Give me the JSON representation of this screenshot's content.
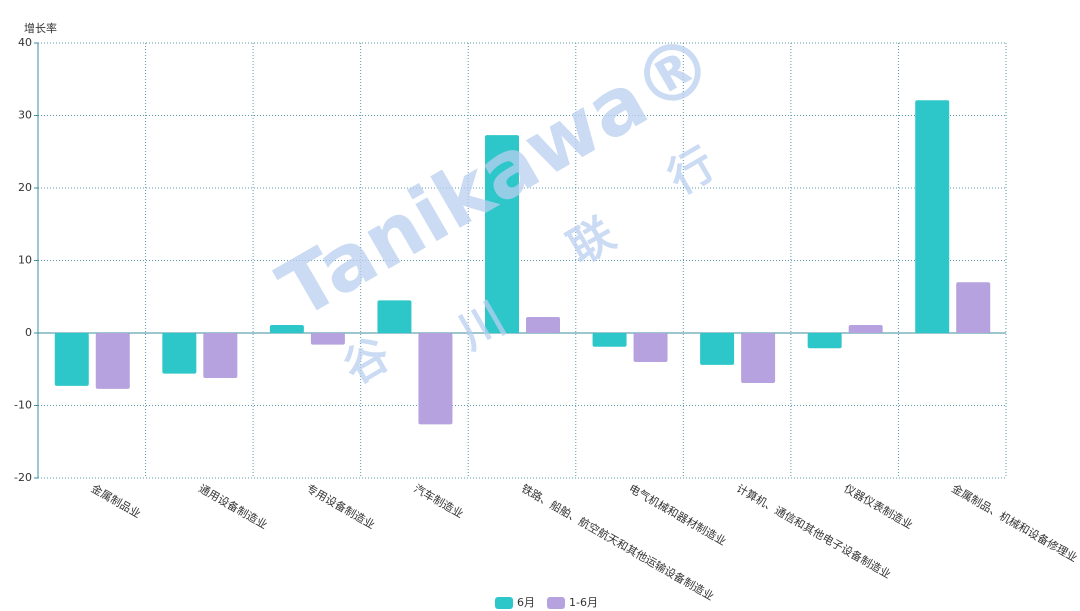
{
  "chart_data": {
    "type": "bar",
    "y_axis_label": "增长率",
    "watermark": {
      "brand": "Tanikawa®",
      "chars": [
        "谷",
        "川",
        "联",
        "行"
      ]
    },
    "categories": [
      "金属制品业",
      "通用设备制造业",
      "专用设备制造业",
      "汽车制造业",
      "铁路、船舶、航空航天和其他运输设备制造业",
      "电气机械和器材制造业",
      "计算机、通信和其他电子设备制造业",
      "仪器仪表制造业",
      "金属制品、机械和设备修理业"
    ],
    "series": [
      {
        "name": "6月",
        "color": "#2ec7c9",
        "values": [
          -7.3,
          -5.6,
          1.1,
          4.5,
          27.3,
          -1.9,
          -4.4,
          -2.1,
          32.1
        ]
      },
      {
        "name": "1-6月",
        "color": "#b6a2de",
        "values": [
          -7.7,
          -6.2,
          -1.6,
          -12.6,
          2.2,
          -4.0,
          -6.9,
          1.1,
          7.0
        ]
      }
    ],
    "ylim": [
      -20,
      40
    ],
    "yticks": [
      -20,
      -10,
      0,
      10,
      20,
      30,
      40
    ],
    "grid": true,
    "legend": "bottom"
  }
}
